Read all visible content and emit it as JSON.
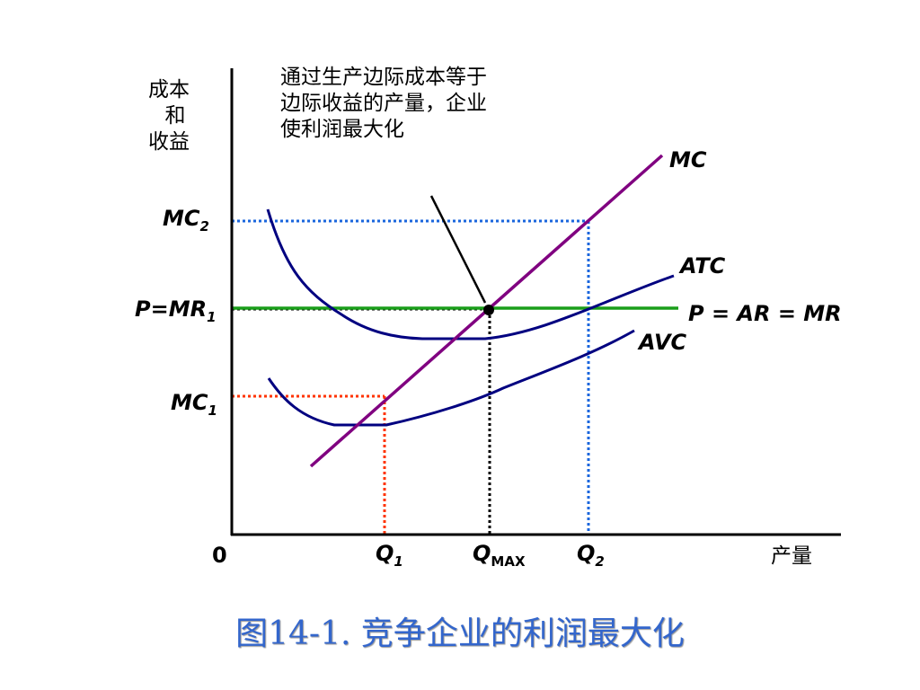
{
  "axes": {
    "y_label_lines": [
      "成本",
      "和",
      "收益"
    ],
    "x_label": "产量",
    "origin": "0"
  },
  "annotation_lines": [
    "通过生产边际成本等于",
    "边际收益的产量，企业",
    "使利润最大化"
  ],
  "curves": {
    "mc": "MC",
    "atc": "ATC",
    "avc": "AVC",
    "price_line": "P = AR = MR"
  },
  "y_ticks": {
    "mc2": {
      "main": "MC",
      "sub": "2"
    },
    "p_mr1": {
      "main": "P=MR",
      "sub": "1"
    },
    "mc1": {
      "main": "MC",
      "sub": "1"
    }
  },
  "x_ticks": {
    "q1": {
      "main": "Q",
      "sub": "1"
    },
    "qmax": {
      "main": "Q",
      "sub": "MAX"
    },
    "q2": {
      "main": "Q",
      "sub": "2"
    }
  },
  "colors": {
    "mc": "#800080",
    "cost_curves": "#000080",
    "price_line": "#1a9e1a",
    "q1_guide": "#ff3300",
    "q2_guide": "#1a66dd",
    "qmax_guide": "#000000",
    "title": "#3366cc"
  },
  "caption": "图14-1.  竞争企业的利润最大化"
}
